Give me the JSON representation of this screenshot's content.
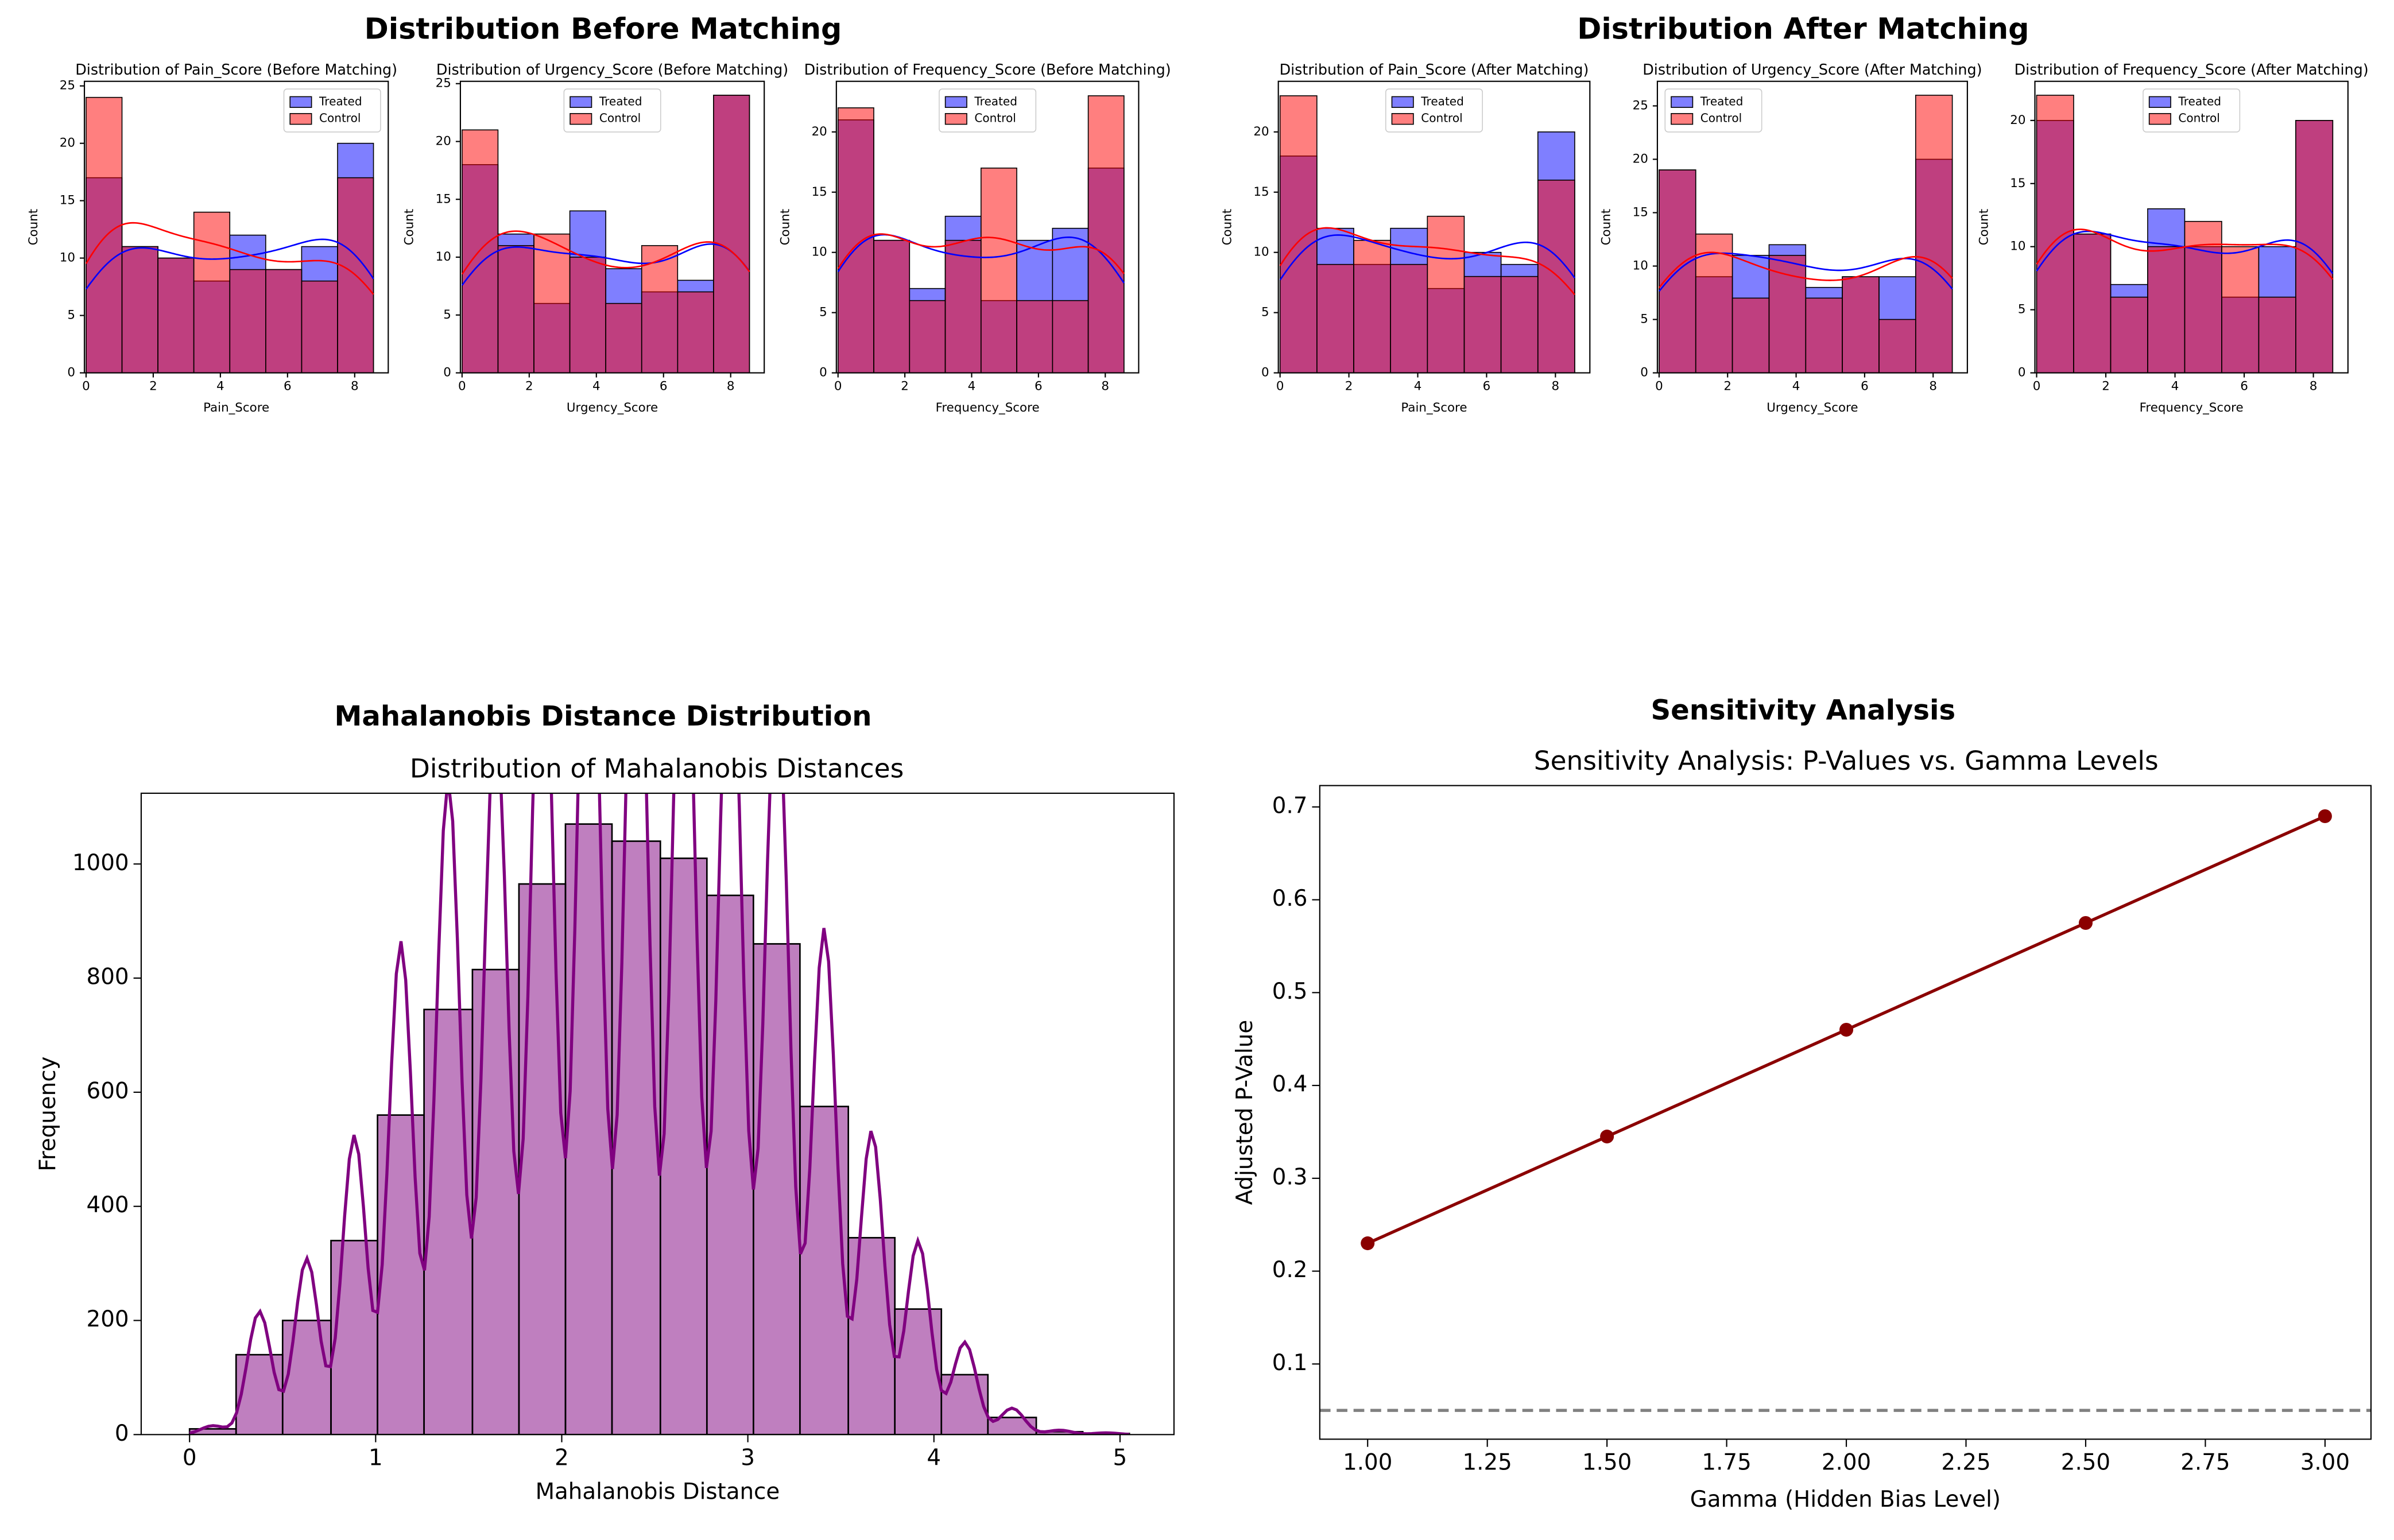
{
  "headings": [
    "Distribution Before Matching",
    "Distribution After Matching"
  ],
  "chart_data": [
    {
      "type": "histogram",
      "title": "Distribution of Pain_Score (Before Matching)",
      "xlabel": "Pain_Score",
      "ylabel": "Count",
      "bins": [
        0,
        1.07,
        2.14,
        3.21,
        4.28,
        5.35,
        6.42,
        7.49,
        8.56
      ],
      "series": [
        {
          "name": "Treated",
          "color": "#0000ff",
          "values": [
            17,
            11,
            10,
            8,
            12,
            9,
            11,
            20
          ]
        },
        {
          "name": "Control",
          "color": "#ff0000",
          "values": [
            24,
            11,
            10,
            14,
            9,
            9,
            8,
            17
          ]
        }
      ],
      "alpha": 0.5,
      "kde": true,
      "xlim": [
        -0.05,
        9
      ],
      "xticks": [
        0,
        2,
        4,
        6,
        8
      ],
      "ylim": [
        0,
        25.4
      ],
      "yticks": [
        0,
        5,
        10,
        15,
        20,
        25
      ],
      "legend": "upper right"
    },
    {
      "type": "histogram",
      "title": "Distribution of Urgency_Score (Before Matching)",
      "xlabel": "Urgency_Score",
      "ylabel": "Count",
      "bins": [
        0,
        1.07,
        2.14,
        3.21,
        4.28,
        5.35,
        6.42,
        7.49,
        8.56
      ],
      "series": [
        {
          "name": "Treated",
          "color": "#0000ff",
          "values": [
            18,
            12,
            6,
            14,
            9,
            7,
            8,
            24
          ]
        },
        {
          "name": "Control",
          "color": "#ff0000",
          "values": [
            21,
            11,
            12,
            10,
            6,
            11,
            7,
            24
          ]
        }
      ],
      "alpha": 0.5,
      "kde": true,
      "xlim": [
        -0.05,
        9
      ],
      "xticks": [
        0,
        2,
        4,
        6,
        8
      ],
      "ylim": [
        0,
        25.2
      ],
      "yticks": [
        0,
        5,
        10,
        15,
        20,
        25
      ],
      "legend": "upper center"
    },
    {
      "type": "histogram",
      "title": "Distribution of Frequency_Score (Before Matching)",
      "xlabel": "Frequency_Score",
      "ylabel": "Count",
      "bins": [
        0,
        1.07,
        2.14,
        3.21,
        4.28,
        5.35,
        6.42,
        7.49,
        8.56
      ],
      "series": [
        {
          "name": "Treated",
          "color": "#0000ff",
          "values": [
            21,
            11,
            7,
            13,
            6,
            11,
            12,
            17
          ]
        },
        {
          "name": "Control",
          "color": "#ff0000",
          "values": [
            22,
            11,
            6,
            11,
            17,
            6,
            6,
            23
          ]
        }
      ],
      "alpha": 0.5,
      "kde": true,
      "xlim": [
        -0.05,
        9
      ],
      "xticks": [
        0,
        2,
        4,
        6,
        8
      ],
      "ylim": [
        0,
        24.2
      ],
      "yticks": [
        0,
        5,
        10,
        15,
        20
      ],
      "legend": "upper center"
    },
    {
      "type": "histogram",
      "title": "Distribution of Pain_Score (After Matching)",
      "xlabel": "Pain_Score",
      "ylabel": "Count",
      "bins": [
        0,
        1.07,
        2.14,
        3.21,
        4.28,
        5.35,
        6.42,
        7.49,
        8.56
      ],
      "series": [
        {
          "name": "Treated",
          "color": "#0000ff",
          "values": [
            18,
            12,
            9,
            12,
            7,
            10,
            9,
            20
          ]
        },
        {
          "name": "Control",
          "color": "#ff0000",
          "values": [
            23,
            9,
            11,
            9,
            13,
            8,
            8,
            16
          ]
        }
      ],
      "alpha": 0.5,
      "kde": true,
      "xlim": [
        -0.05,
        9
      ],
      "xticks": [
        0,
        2,
        4,
        6,
        8
      ],
      "ylim": [
        0,
        24.2
      ],
      "yticks": [
        0,
        5,
        10,
        15,
        20
      ],
      "legend": "upper center"
    },
    {
      "type": "histogram",
      "title": "Distribution of Urgency_Score (After Matching)",
      "xlabel": "Urgency_Score",
      "ylabel": "Count",
      "bins": [
        0,
        1.07,
        2.14,
        3.21,
        4.28,
        5.35,
        6.42,
        7.49,
        8.56
      ],
      "series": [
        {
          "name": "Treated",
          "color": "#0000ff",
          "values": [
            19,
            9,
            11,
            12,
            8,
            9,
            9,
            20
          ]
        },
        {
          "name": "Control",
          "color": "#ff0000",
          "values": [
            19,
            13,
            7,
            11,
            7,
            9,
            5,
            26
          ]
        }
      ],
      "alpha": 0.5,
      "kde": true,
      "xlim": [
        -0.05,
        9
      ],
      "xticks": [
        0,
        2,
        4,
        6,
        8
      ],
      "ylim": [
        0,
        27.3
      ],
      "yticks": [
        0,
        5,
        10,
        15,
        20,
        25
      ],
      "legend": "upper left"
    },
    {
      "type": "histogram",
      "title": "Distribution of Frequency_Score (After Matching)",
      "xlabel": "Frequency_Score",
      "ylabel": "Count",
      "bins": [
        0,
        1.07,
        2.14,
        3.21,
        4.28,
        5.35,
        6.42,
        7.49,
        8.56
      ],
      "series": [
        {
          "name": "Treated",
          "color": "#0000ff",
          "values": [
            20,
            11,
            7,
            13,
            10,
            6,
            10,
            20
          ]
        },
        {
          "name": "Control",
          "color": "#ff0000",
          "values": [
            22,
            11,
            6,
            10,
            12,
            10,
            6,
            20
          ]
        }
      ],
      "alpha": 0.5,
      "kde": true,
      "xlim": [
        -0.05,
        9
      ],
      "xticks": [
        0,
        2,
        4,
        6,
        8
      ],
      "ylim": [
        0,
        23.1
      ],
      "yticks": [
        0,
        5,
        10,
        15,
        20
      ],
      "legend": "upper center"
    },
    {
      "type": "histogram",
      "title": "Mahalanobis Distance Distribution",
      "subtitle": "Distribution of Mahalanobis Distances",
      "xlabel": "Mahalanobis Distance",
      "ylabel": "Frequency",
      "bins": [
        0,
        0.25,
        0.5,
        0.76,
        1.01,
        1.26,
        1.52,
        1.77,
        2.02,
        2.27,
        2.53,
        2.78,
        3.03,
        3.28,
        3.54,
        3.79,
        4.04,
        4.29,
        4.55,
        4.8,
        5.05
      ],
      "series": [
        {
          "color": "#800080",
          "values": [
            10,
            140,
            200,
            340,
            560,
            745,
            815,
            965,
            1070,
            1040,
            1010,
            945,
            860,
            575,
            345,
            220,
            105,
            30,
            5,
            2
          ]
        }
      ],
      "alpha": 0.5,
      "kde": true,
      "xlim": [
        -0.26,
        5.29
      ],
      "xticks": [
        0,
        1,
        2,
        3,
        4,
        5
      ],
      "ylim": [
        0,
        1124
      ],
      "yticks": [
        0,
        200,
        400,
        600,
        800,
        1000
      ]
    },
    {
      "type": "line",
      "title": "Sensitivity Analysis",
      "subtitle": "Sensitivity Analysis: P-Values vs. Gamma Levels",
      "xlabel": "Gamma (Hidden Bias Level)",
      "ylabel": "Adjusted P-Value",
      "x": [
        1,
        1.5,
        2,
        2.5,
        3
      ],
      "series": [
        {
          "color": "#8b0000",
          "values": [
            0.23,
            0.345,
            0.46,
            0.575,
            0.69
          ]
        }
      ],
      "hline": {
        "value": 0.05,
        "color": "#808080",
        "style": "dashed"
      },
      "xlim": [
        0.9,
        3.096
      ],
      "xticks": [
        {
          "value": 1,
          "label": "1.00"
        },
        {
          "value": 1.25,
          "label": "1.25"
        },
        {
          "value": 1.5,
          "label": "1.50"
        },
        {
          "value": 1.75,
          "label": "1.75"
        },
        {
          "value": 2,
          "label": "2.00"
        },
        {
          "value": 2.25,
          "label": "2.25"
        },
        {
          "value": 2.5,
          "label": "2.50"
        },
        {
          "value": 2.75,
          "label": "2.75"
        },
        {
          "value": 3,
          "label": "3.00"
        }
      ],
      "ylim": [
        0.019,
        0.723
      ],
      "yticks": [
        0.1,
        0.2,
        0.3,
        0.4,
        0.5,
        0.6,
        0.7
      ]
    }
  ]
}
